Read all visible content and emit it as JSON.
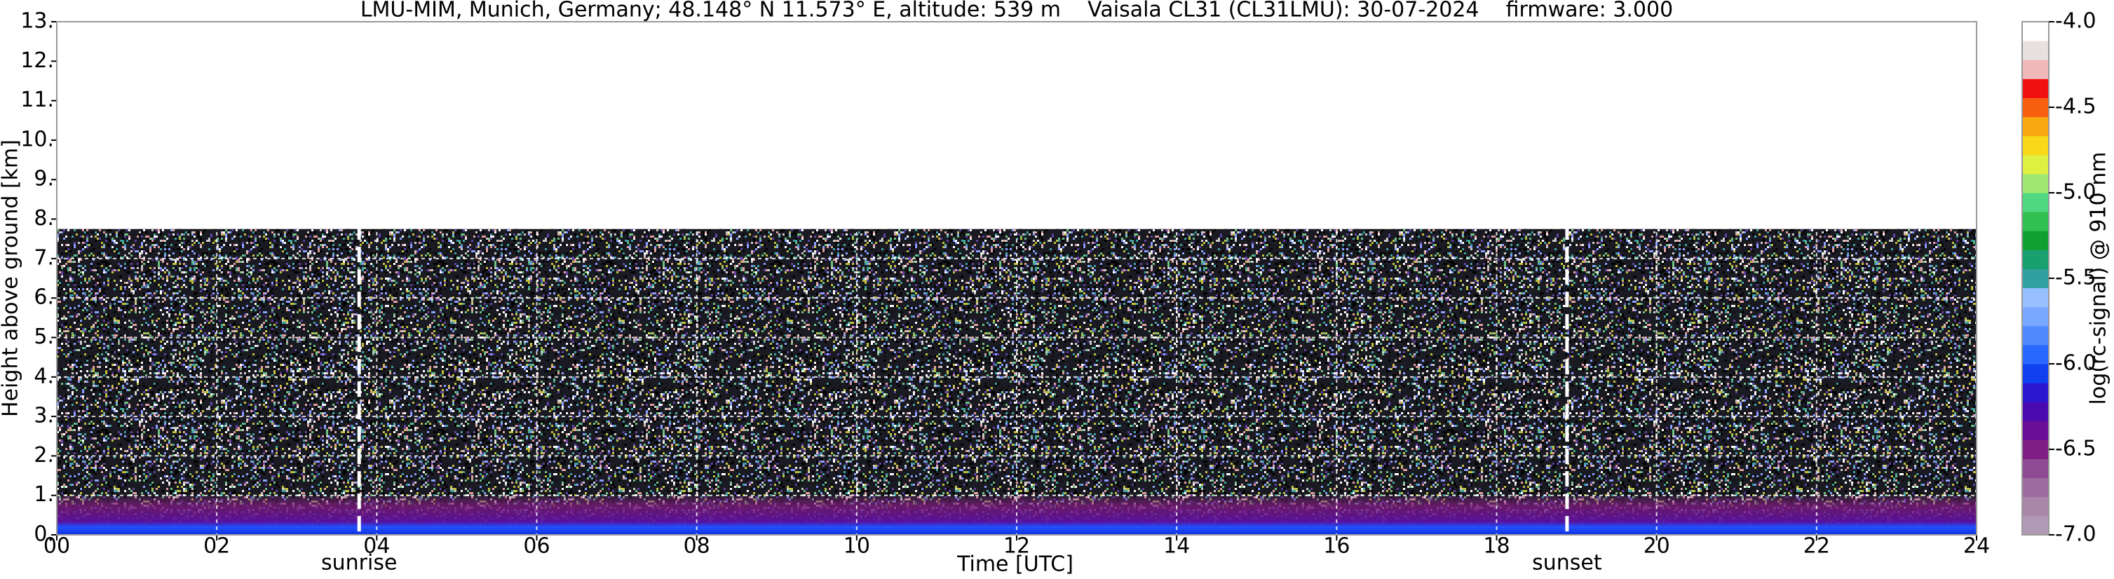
{
  "chart_data": {
    "type": "heatmap",
    "title": "LMU-MIM, Munich, Germany; 48.148° N 11.573° E, altitude: 539 m    Vaisala CL31 (CL31LMU): 30-07-2024    firmware: 3.000",
    "xlabel": "Time [UTC]",
    "ylabel": "Height above ground [km]",
    "xlim": [
      0,
      24
    ],
    "xticks": [
      {
        "value": 0,
        "label": "00"
      },
      {
        "value": 2,
        "label": "02"
      },
      {
        "value": 4,
        "label": "04"
      },
      {
        "value": 6,
        "label": "06"
      },
      {
        "value": 8,
        "label": "08"
      },
      {
        "value": 10,
        "label": "10"
      },
      {
        "value": 12,
        "label": "12"
      },
      {
        "value": 14,
        "label": "14"
      },
      {
        "value": 16,
        "label": "16"
      },
      {
        "value": 18,
        "label": "18"
      },
      {
        "value": 20,
        "label": "20"
      },
      {
        "value": 22,
        "label": "22"
      },
      {
        "value": 24,
        "label": "24"
      }
    ],
    "ylim": [
      0,
      13
    ],
    "yticks": [
      {
        "value": 0,
        "label": "0."
      },
      {
        "value": 1,
        "label": "1."
      },
      {
        "value": 2,
        "label": "2."
      },
      {
        "value": 3,
        "label": "3."
      },
      {
        "value": 4,
        "label": "4."
      },
      {
        "value": 5,
        "label": "5."
      },
      {
        "value": 6,
        "label": "6."
      },
      {
        "value": 7,
        "label": "7."
      },
      {
        "value": 8,
        "label": "8."
      },
      {
        "value": 9,
        "label": "9."
      },
      {
        "value": 10,
        "label": "10."
      },
      {
        "value": 11,
        "label": "11."
      },
      {
        "value": 12,
        "label": "12."
      },
      {
        "value": 13,
        "label": "13."
      }
    ],
    "grid": true,
    "annotations": [
      {
        "x": 3.78,
        "label": "sunrise"
      },
      {
        "x": 18.88,
        "label": "sunset"
      }
    ],
    "colorbar": {
      "label": "log(rc-signal) @ 910 nm",
      "clim": [
        -7,
        -4
      ],
      "ticks": [
        {
          "value": -7,
          "label": "-7.0"
        },
        {
          "value": -6.5,
          "label": "-6.5"
        },
        {
          "value": -6,
          "label": "-6.0"
        },
        {
          "value": -5.5,
          "label": "-5.5"
        },
        {
          "value": -5,
          "label": "-5.0"
        },
        {
          "value": -4.5,
          "label": "-4.5"
        },
        {
          "value": -4,
          "label": "-4.0"
        }
      ],
      "colors": [
        "#b09ab5",
        "#a887a8",
        "#9e6b9e",
        "#8e4a92",
        "#7f1f85",
        "#6a0e95",
        "#4a0ab0",
        "#2a18d0",
        "#1040f0",
        "#2868ff",
        "#5088ff",
        "#78a8ff",
        "#98c0ff",
        "#30a0a0",
        "#18a070",
        "#10a030",
        "#30c050",
        "#50d880",
        "#a0e870",
        "#e0f040",
        "#f8d818",
        "#f8a810",
        "#f86010",
        "#f01010",
        "#f0b8b8",
        "#e8e0e0",
        "#ffffff"
      ]
    }
  }
}
